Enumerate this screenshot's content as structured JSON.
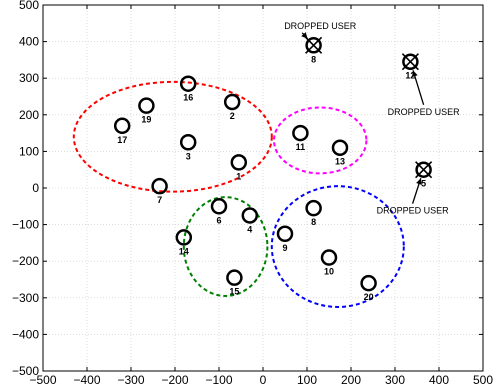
{
  "chart_data": {
    "type": "scatter",
    "xlim": [
      -500,
      500
    ],
    "ylim": [
      -500,
      500
    ],
    "x_ticks": [
      -500,
      -400,
      -300,
      -200,
      -100,
      0,
      100,
      200,
      300,
      400,
      500
    ],
    "y_ticks": [
      -500,
      -400,
      -300,
      -200,
      -100,
      0,
      100,
      200,
      300,
      400,
      500
    ],
    "grid": true,
    "points": [
      {
        "label": "1",
        "x": -55,
        "y": 70,
        "dropped": false
      },
      {
        "label": "2",
        "x": -70,
        "y": 235,
        "dropped": false
      },
      {
        "label": "3",
        "x": -170,
        "y": 125,
        "dropped": false
      },
      {
        "label": "4",
        "x": -30,
        "y": -75,
        "dropped": false
      },
      {
        "label": "5",
        "x": 365,
        "y": 50,
        "dropped": true
      },
      {
        "label": "6",
        "x": -100,
        "y": -50,
        "dropped": false
      },
      {
        "label": "7",
        "x": -235,
        "y": 5,
        "dropped": false
      },
      {
        "label": "8",
        "x": 115,
        "y": -55,
        "dropped": false
      },
      {
        "label": "8",
        "x": 115,
        "y": 390,
        "dropped": true
      },
      {
        "label": "9",
        "x": 50,
        "y": -125,
        "dropped": false
      },
      {
        "label": "10",
        "x": 150,
        "y": -190,
        "dropped": false
      },
      {
        "label": "11",
        "x": 85,
        "y": 150,
        "dropped": false
      },
      {
        "label": "12",
        "x": 335,
        "y": 345,
        "dropped": true
      },
      {
        "label": "13",
        "x": 175,
        "y": 110,
        "dropped": false
      },
      {
        "label": "14",
        "x": -180,
        "y": -135,
        "dropped": false
      },
      {
        "label": "15",
        "x": -65,
        "y": -245,
        "dropped": false
      },
      {
        "label": "16",
        "x": -170,
        "y": 285,
        "dropped": false
      },
      {
        "label": "17",
        "x": -320,
        "y": 170,
        "dropped": false
      },
      {
        "label": "19",
        "x": -265,
        "y": 225,
        "dropped": false
      },
      {
        "label": "20",
        "x": 240,
        "y": -260,
        "dropped": false
      }
    ],
    "clusters": [
      {
        "color": "#ff0000",
        "cx": -205,
        "cy": 140,
        "rx": 225,
        "ry": 150
      },
      {
        "color": "#ff00ff",
        "cx": 130,
        "cy": 130,
        "rx": 105,
        "ry": 90
      },
      {
        "color": "#008000",
        "cx": -85,
        "cy": -160,
        "rx": 95,
        "ry": 135
      },
      {
        "color": "#0000ff",
        "cx": 170,
        "cy": -160,
        "rx": 150,
        "ry": 165
      }
    ],
    "annotations": [
      {
        "text": "DROPPED USER",
        "tx": 130,
        "ty": 435,
        "ax": 115,
        "ay": 390
      },
      {
        "text": "DROPPED USER",
        "tx": 365,
        "ty": 200,
        "ax": 335,
        "ay": 345
      },
      {
        "text": "DROPPED USER",
        "tx": 340,
        "ty": -70,
        "ax": 365,
        "ay": 50
      }
    ]
  }
}
